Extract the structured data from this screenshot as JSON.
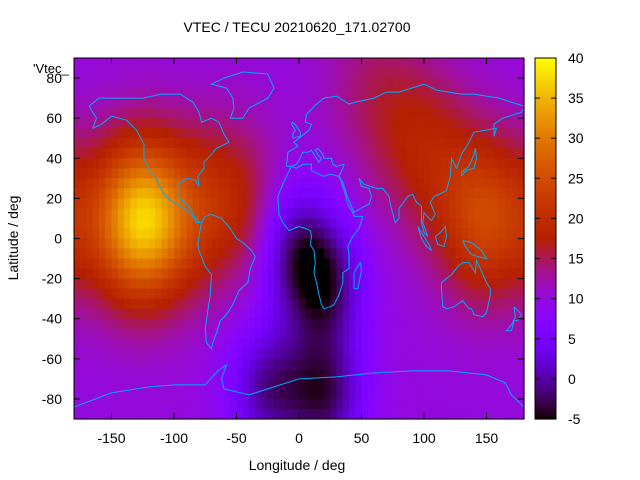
{
  "chart_data": {
    "type": "heatmap",
    "title": "VTEC / TECU 20210620_171.02700",
    "xlabel": "Longitude / deg",
    "ylabel": "Latitude / deg",
    "legend_label": "'Vtec_",
    "xlim": [
      -180,
      180
    ],
    "ylim": [
      -90,
      90
    ],
    "xticks": [
      -150,
      -100,
      -50,
      0,
      50,
      100,
      150
    ],
    "yticks": [
      -80,
      -60,
      -40,
      -20,
      0,
      20,
      40,
      60,
      80
    ],
    "colorbar": {
      "range": [
        -5,
        40
      ],
      "ticks": [
        -5,
        0,
        5,
        10,
        15,
        20,
        25,
        30,
        35,
        40
      ],
      "palette": "gnuplot pm3d (black-purple-red-orange-yellow)"
    },
    "grid": false,
    "field_features": [
      {
        "kind": "max",
        "lon": -125,
        "lat": 9,
        "value": 37
      },
      {
        "kind": "max",
        "lon": 150,
        "lat": 10,
        "value": 24
      },
      {
        "kind": "max",
        "lon": -60,
        "lat": 18,
        "value": 19
      },
      {
        "kind": "max",
        "lon": 100,
        "lat": 45,
        "value": 17
      },
      {
        "kind": "max",
        "lon": 60,
        "lat": 75,
        "value": 14
      },
      {
        "kind": "min",
        "lon": 0,
        "lat": -5,
        "value": 0
      },
      {
        "kind": "min",
        "lon": 20,
        "lat": -25,
        "value": -1
      },
      {
        "kind": "min",
        "lon": -25,
        "lat": -75,
        "value": 0
      },
      {
        "kind": "min",
        "lon": 20,
        "lat": -78,
        "value": -2
      }
    ],
    "background_value": 10,
    "colors": {
      "coastline": "#00aaff",
      "background": "#ffffff"
    }
  }
}
